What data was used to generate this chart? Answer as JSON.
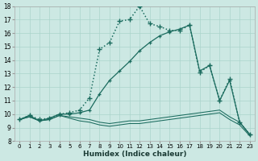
{
  "xlabel": "Humidex (Indice chaleur)",
  "background_color": "#cce8e3",
  "grid_color": "#aad4cc",
  "line_color": "#1a6b5e",
  "xlim_min": -0.5,
  "xlim_max": 23.5,
  "ylim_min": 8,
  "ylim_max": 18,
  "xticks": [
    0,
    1,
    2,
    3,
    4,
    5,
    6,
    7,
    8,
    9,
    10,
    11,
    12,
    13,
    14,
    15,
    16,
    17,
    18,
    19,
    20,
    21,
    22,
    23
  ],
  "yticks": [
    8,
    9,
    10,
    11,
    12,
    13,
    14,
    15,
    16,
    17,
    18
  ],
  "line1_x": [
    0,
    1,
    2,
    3,
    4,
    5,
    6,
    7,
    8,
    9,
    10,
    11,
    12,
    13,
    14,
    15,
    16,
    17,
    18,
    19,
    20,
    21,
    22,
    23
  ],
  "line1_y": [
    9.6,
    9.9,
    9.6,
    9.7,
    10.0,
    10.1,
    10.3,
    11.2,
    14.8,
    15.3,
    16.9,
    17.0,
    18.0,
    16.7,
    16.5,
    16.2,
    16.2,
    16.6,
    13.1,
    13.6,
    11.0,
    12.6,
    9.4,
    8.5
  ],
  "line2_x": [
    0,
    1,
    2,
    3,
    4,
    5,
    6,
    7,
    8,
    9,
    10,
    11,
    12,
    13,
    14,
    15,
    16,
    17,
    18,
    19,
    20,
    21,
    22,
    23
  ],
  "line2_y": [
    9.6,
    9.9,
    9.5,
    9.7,
    10.0,
    10.0,
    10.1,
    10.3,
    11.5,
    12.5,
    13.2,
    13.9,
    14.7,
    15.3,
    15.8,
    16.1,
    16.3,
    16.6,
    13.2,
    13.6,
    11.0,
    12.5,
    9.4,
    8.5
  ],
  "line3_x": [
    0,
    1,
    2,
    3,
    4,
    5,
    6,
    7,
    8,
    9,
    10,
    11,
    12,
    13,
    14,
    15,
    16,
    17,
    18,
    19,
    20,
    21,
    22,
    23
  ],
  "line3_y": [
    9.6,
    9.8,
    9.5,
    9.6,
    9.9,
    9.8,
    9.7,
    9.6,
    9.4,
    9.3,
    9.4,
    9.5,
    9.5,
    9.6,
    9.7,
    9.8,
    9.9,
    10.0,
    10.1,
    10.2,
    10.3,
    9.8,
    9.4,
    8.5
  ],
  "line4_x": [
    0,
    1,
    2,
    3,
    4,
    5,
    6,
    7,
    8,
    9,
    10,
    11,
    12,
    13,
    14,
    15,
    16,
    17,
    18,
    19,
    20,
    21,
    22,
    23
  ],
  "line4_y": [
    9.6,
    9.8,
    9.5,
    9.6,
    9.9,
    9.7,
    9.5,
    9.4,
    9.2,
    9.1,
    9.2,
    9.3,
    9.3,
    9.4,
    9.5,
    9.6,
    9.7,
    9.8,
    9.9,
    10.0,
    10.1,
    9.6,
    9.2,
    8.4
  ]
}
